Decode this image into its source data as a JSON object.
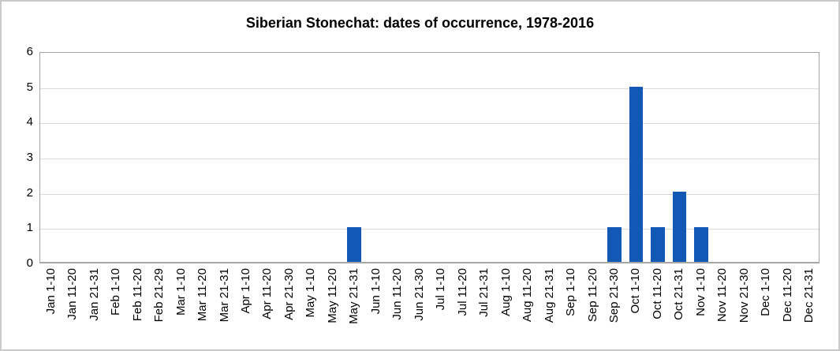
{
  "chart_data": {
    "type": "bar",
    "title": "Siberian Stonechat: dates of occurrence, 1978-2016",
    "xlabel": "",
    "ylabel": "",
    "categories": [
      "Jan 1-10",
      "Jan 11-20",
      "Jan 21-31",
      "Feb 1-10",
      "Feb 11-20",
      "Feb 21-29",
      "Mar 1-10",
      "Mar 11-20",
      "Mar 21-31",
      "Apr 1-10",
      "Apr 11-20",
      "Apr 21-30",
      "May 1-10",
      "May 11-20",
      "May 21-31",
      "Jun 1-10",
      "Jun 11-20",
      "Jun 21-30",
      "Jul 1-10",
      "Jul 11-20",
      "Jul 21-31",
      "Aug 1-10",
      "Aug 11-20",
      "Aug 21-31",
      "Sep 1-10",
      "Sep 11-20",
      "Sep 21-30",
      "Oct 1-10",
      "Oct 11-20",
      "Oct 21-31",
      "Nov 1-10",
      "Nov 11-20",
      "Nov 21-30",
      "Dec 1-10",
      "Dec 11-20",
      "Dec 21-31"
    ],
    "values": [
      0,
      0,
      0,
      0,
      0,
      0,
      0,
      0,
      0,
      0,
      0,
      0,
      0,
      0,
      1,
      0,
      0,
      0,
      0,
      0,
      0,
      0,
      0,
      0,
      0,
      0,
      1,
      5,
      1,
      2,
      1,
      0,
      0,
      0,
      0,
      0
    ],
    "ylim": [
      0,
      6
    ],
    "yticks": [
      0,
      1,
      2,
      3,
      4,
      5,
      6
    ],
    "grid": true,
    "legend_position": "none",
    "colors": {
      "bar": "#1159B4",
      "gridline": "#d9d9d9",
      "axis": "#a6a6a6",
      "text": "#000000"
    }
  }
}
